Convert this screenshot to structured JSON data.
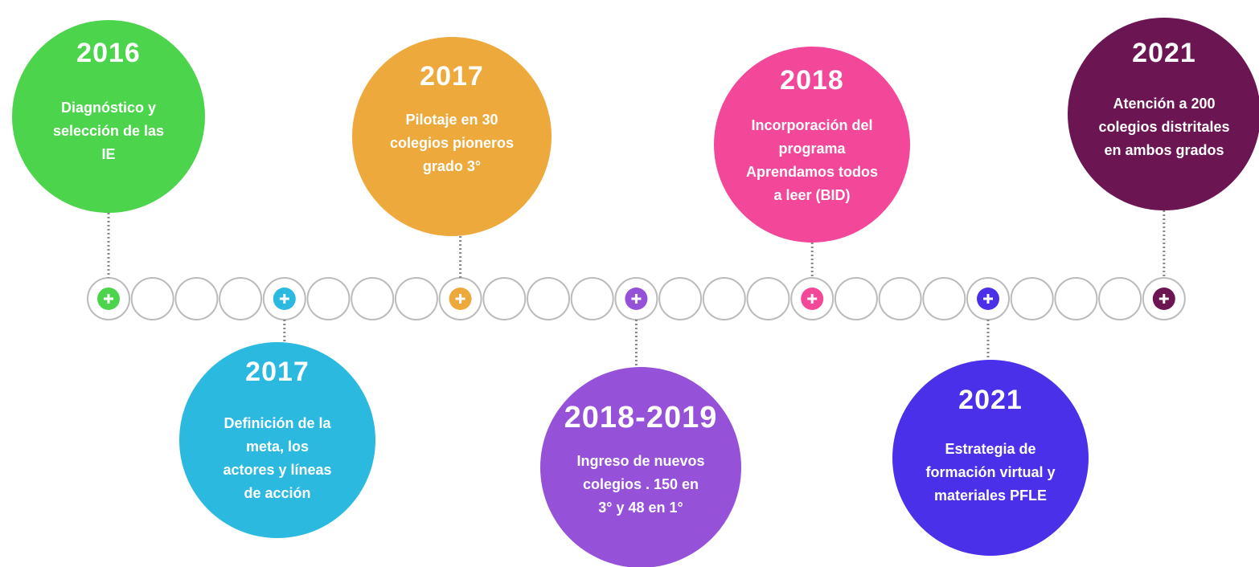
{
  "events": [
    {
      "year": "2016",
      "lines": [
        "Diagnóstico y",
        "selección de las",
        "IE"
      ],
      "color": "#4cd44c"
    },
    {
      "year": "2017",
      "lines": [
        "Definición de la",
        "meta,  los",
        "actores y líneas",
        "de acción"
      ],
      "color": "#2bb9e0"
    },
    {
      "year": "2017",
      "lines": [
        "Pilotaje en 30",
        "colegios pioneros",
        "grado 3°"
      ],
      "color": "#eda93b"
    },
    {
      "year": "2018-2019",
      "lines": [
        "Ingreso de nuevos",
        "colegios . 150 en",
        "3° y 48 en 1°"
      ],
      "color": "#9552d9"
    },
    {
      "year": "2018",
      "lines": [
        "Incorporación del",
        "programa",
        "Aprendamos todos",
        "a leer (BID)"
      ],
      "color": "#f3479a"
    },
    {
      "year": "2021",
      "lines": [
        "Estrategia  de",
        "formación virtual  y",
        "materiales PFLE"
      ],
      "color": "#4a30e8"
    },
    {
      "year": "2021",
      "lines": [
        "Atención  a 200",
        "colegios distritales",
        "en ambos grados"
      ],
      "color": "#6b1553"
    }
  ]
}
